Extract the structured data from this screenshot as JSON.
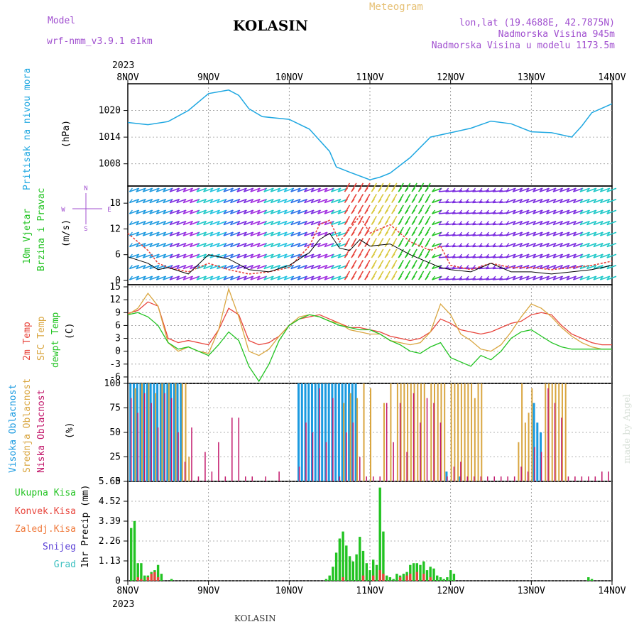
{
  "header": {
    "model_label": "Model",
    "model_name": "wrf-nmm_v3.9.1  e1km",
    "station": "KOLASIN",
    "product": "Meteogram",
    "lonlat": "lon,lat (19.4688E, 42.7875N)",
    "elevation": "Nadmorska Visina 945m",
    "model_elevation": "Nadmorska Visina u modelu 1173.5m",
    "year_top": "2023",
    "year_bottom": "2023",
    "footer_station": "KOLASIN",
    "watermark": "made by Angel"
  },
  "colors": {
    "pressure": "#1ea7e1",
    "temp2m": "#e8453c",
    "sfc_temp": "#d9a640",
    "dewpoint": "#22c322",
    "high_cloud": "#1a9ae0",
    "mid_cloud": "#d9a640",
    "low_cloud": "#c2186b",
    "total_precip": "#22c322",
    "conv_precip": "#e8453c",
    "frozen_precip": "#f07a3c",
    "snow": "#5a3fd6",
    "graupel": "#3cc0c0",
    "gust": "#e8453c",
    "speed": "#000000"
  },
  "chart_data": [
    {
      "type": "line",
      "panel": "pressure",
      "ylabel": [
        "Pritisak na nivou mora",
        "(hPa)"
      ],
      "ylim": [
        1003,
        1026
      ],
      "yticks": [
        "1008",
        "1014",
        "1020"
      ],
      "x_dates": [
        "8NOV",
        "9NOV",
        "10NOV",
        "11NOV",
        "12NOV",
        "13NOV",
        "14NOV"
      ],
      "x_hours": [
        0,
        6,
        12,
        18,
        24,
        30,
        33,
        36,
        40,
        48,
        54,
        60,
        62,
        66,
        72,
        75,
        78,
        84,
        90,
        96,
        102,
        108,
        114,
        120,
        126,
        132,
        135,
        138,
        144
      ],
      "values": [
        1017.3,
        1016.8,
        1017.5,
        1020.0,
        1023.8,
        1024.6,
        1023.4,
        1020.4,
        1018.6,
        1018.0,
        1015.8,
        1010.8,
        1007.3,
        1006.1,
        1004.4,
        1005.0,
        1005.9,
        1009.4,
        1014.0,
        1015.0,
        1016.0,
        1017.6,
        1017.0,
        1015.2,
        1015.0,
        1014.0,
        1016.5,
        1019.5,
        1021.5
      ]
    },
    {
      "type": "line",
      "panel": "wind",
      "ylabel": [
        "10m Vjetar",
        "Brzina i Pravac",
        "(m/s)"
      ],
      "compass": {
        "n": "N",
        "e": "E",
        "s": "S",
        "w": "W"
      },
      "ylim": [
        -1,
        22
      ],
      "yticks": [
        "0",
        "6",
        "12",
        "18"
      ],
      "x_hours": [
        0,
        6,
        9,
        12,
        18,
        24,
        30,
        36,
        42,
        48,
        54,
        57,
        60,
        63,
        66,
        69,
        72,
        78,
        84,
        90,
        93,
        96,
        102,
        108,
        114,
        120,
        126,
        132,
        138,
        144
      ],
      "series": [
        {
          "name": "gust",
          "values": [
            11.0,
            7.0,
            4.0,
            3.0,
            2.0,
            4.0,
            2.5,
            1.5,
            2.0,
            3.0,
            8.0,
            13.0,
            14.0,
            9.0,
            12.0,
            15.0,
            11.0,
            13.0,
            9.0,
            7.0,
            8.0,
            3.5,
            2.5,
            4.0,
            3.0,
            3.0,
            2.5,
            3.0,
            3.5,
            4.5
          ]
        },
        {
          "name": "speed",
          "values": [
            5.5,
            4.0,
            2.5,
            3.0,
            1.5,
            6.0,
            5.0,
            2.5,
            2.0,
            3.5,
            6.5,
            9.5,
            11.0,
            7.5,
            7.0,
            9.5,
            8.0,
            8.5,
            6.0,
            4.0,
            3.0,
            2.5,
            2.0,
            4.0,
            2.0,
            2.0,
            1.5,
            2.0,
            2.5,
            3.5
          ]
        }
      ]
    },
    {
      "type": "line",
      "panel": "temperature",
      "ylabel": [
        "2m Temp",
        "SFC Temp",
        "dewpt Temp",
        "(C)"
      ],
      "ylim": [
        -7.5,
        15.5
      ],
      "yticks": [
        "-6",
        "-3",
        "0",
        "3",
        "6",
        "9",
        "12",
        "15"
      ],
      "x_hours": [
        0,
        3,
        6,
        9,
        12,
        15,
        18,
        21,
        24,
        27,
        30,
        33,
        36,
        39,
        42,
        45,
        48,
        51,
        54,
        57,
        60,
        63,
        66,
        69,
        72,
        75,
        78,
        81,
        84,
        87,
        90,
        93,
        96,
        99,
        102,
        105,
        108,
        111,
        114,
        117,
        120,
        123,
        126,
        129,
        132,
        135,
        138,
        141,
        144
      ],
      "series": [
        {
          "name": "2m Temp",
          "values": [
            8.8,
            9.5,
            11.5,
            10.5,
            3.0,
            2.0,
            2.5,
            2.0,
            1.5,
            5.0,
            10.0,
            8.5,
            2.5,
            1.5,
            2.0,
            3.5,
            6.0,
            7.5,
            8.0,
            8.5,
            7.5,
            6.5,
            5.5,
            5.5,
            5.0,
            4.5,
            3.5,
            3.0,
            2.5,
            3.0,
            4.5,
            7.5,
            6.5,
            5.0,
            4.5,
            4.0,
            4.5,
            5.5,
            6.5,
            7.0,
            8.5,
            9.0,
            8.5,
            6.0,
            4.0,
            3.0,
            2.0,
            1.5,
            1.5
          ]
        },
        {
          "name": "SFC Temp",
          "values": [
            8.5,
            10.0,
            13.5,
            10.5,
            2.0,
            0.0,
            1.0,
            0.0,
            -0.5,
            5.0,
            14.5,
            8.0,
            0.0,
            -1.0,
            0.5,
            3.5,
            6.0,
            8.0,
            8.5,
            8.0,
            7.0,
            6.5,
            5.0,
            4.5,
            4.0,
            4.0,
            2.5,
            2.0,
            1.5,
            2.0,
            4.5,
            11.0,
            8.5,
            4.0,
            2.5,
            0.5,
            0.0,
            1.5,
            4.5,
            8.0,
            11.0,
            10.0,
            8.0,
            5.5,
            3.5,
            2.0,
            1.0,
            0.5,
            0.5
          ]
        },
        {
          "name": "dewpt Temp",
          "values": [
            8.5,
            9.0,
            8.0,
            6.0,
            2.0,
            0.5,
            1.0,
            0.0,
            -1.0,
            1.5,
            4.5,
            2.5,
            -3.5,
            -7.0,
            -3.0,
            2.5,
            6.0,
            7.5,
            8.5,
            8.0,
            7.0,
            6.0,
            5.5,
            5.0,
            5.0,
            4.0,
            2.5,
            1.5,
            0.0,
            -0.5,
            1.0,
            2.0,
            -1.5,
            -2.5,
            -3.5,
            -1.0,
            -2.0,
            0.0,
            3.0,
            4.5,
            5.0,
            3.5,
            2.0,
            1.0,
            0.5,
            0.5,
            0.5,
            0.5,
            0.5
          ]
        }
      ]
    },
    {
      "type": "bar",
      "panel": "clouds",
      "ylabel": [
        "Visoka Oblacnost",
        "Srednja Oblacnost",
        "Niska Oblacnost",
        "(%)"
      ],
      "ylim": [
        0,
        100
      ],
      "yticks": [
        "0",
        "25",
        "50",
        "75",
        "100"
      ],
      "series": [
        {
          "name": "Visoka Oblacnost",
          "hours": [
            1,
            2,
            3,
            4,
            5,
            6,
            7,
            8,
            9,
            10,
            11,
            12,
            13,
            14,
            15,
            16,
            51,
            52,
            53,
            54,
            55,
            56,
            57,
            58,
            59,
            60,
            61,
            62,
            63,
            64,
            65,
            66,
            67,
            68,
            95,
            99,
            121,
            122,
            123
          ],
          "values": [
            100,
            100,
            100,
            100,
            100,
            100,
            100,
            100,
            100,
            100,
            100,
            100,
            100,
            100,
            100,
            100,
            100,
            100,
            100,
            100,
            100,
            100,
            100,
            100,
            100,
            100,
            100,
            100,
            100,
            100,
            100,
            100,
            100,
            100,
            10,
            5,
            80,
            60,
            50
          ]
        },
        {
          "name": "Srednja Oblacnost",
          "hours": [
            2,
            4,
            6,
            8,
            10,
            12,
            14,
            16,
            17,
            18,
            64,
            66,
            68,
            70,
            72,
            76,
            78,
            80,
            81,
            82,
            83,
            84,
            85,
            86,
            87,
            88,
            90,
            91,
            92,
            93,
            94,
            96,
            97,
            98,
            99,
            100,
            101,
            102,
            103,
            104,
            105,
            116,
            117,
            118,
            119,
            120,
            124,
            125,
            126,
            127,
            128,
            129,
            130
          ],
          "values": [
            95,
            100,
            100,
            90,
            100,
            100,
            100,
            100,
            100,
            25,
            80,
            90,
            85,
            100,
            95,
            80,
            100,
            100,
            100,
            100,
            100,
            100,
            100,
            100,
            100,
            100,
            100,
            100,
            100,
            100,
            100,
            100,
            100,
            100,
            100,
            100,
            100,
            100,
            85,
            100,
            100,
            40,
            100,
            60,
            70,
            95,
            100,
            100,
            100,
            100,
            100,
            100,
            100
          ]
        },
        {
          "name": "Niska Oblacnost",
          "hours": [
            1,
            3,
            5,
            7,
            9,
            11,
            13,
            15,
            17,
            19,
            21,
            23,
            25,
            27,
            29,
            31,
            33,
            35,
            37,
            41,
            45,
            51,
            53,
            55,
            57,
            59,
            61,
            63,
            65,
            67,
            69,
            71,
            73,
            75,
            77,
            79,
            81,
            83,
            85,
            87,
            89,
            91,
            93,
            95,
            97,
            99,
            101,
            103,
            105,
            107,
            109,
            111,
            113,
            115,
            117,
            119,
            121,
            123,
            125,
            127,
            129,
            131,
            133,
            135,
            137,
            139,
            141,
            143
          ],
          "values": [
            85,
            70,
            90,
            80,
            55,
            90,
            85,
            50,
            20,
            55,
            5,
            30,
            10,
            40,
            5,
            65,
            65,
            5,
            5,
            5,
            10,
            15,
            60,
            50,
            95,
            40,
            85,
            5,
            50,
            60,
            25,
            5,
            5,
            5,
            80,
            40,
            80,
            30,
            90,
            60,
            85,
            80,
            60,
            5,
            15,
            20,
            5,
            5,
            5,
            5,
            5,
            5,
            5,
            5,
            15,
            10,
            35,
            30,
            95,
            80,
            65,
            5,
            5,
            5,
            5,
            5,
            10,
            10
          ]
        }
      ]
    },
    {
      "type": "bar",
      "panel": "precipitation",
      "ylabel": [
        "1hr Precip (mm)"
      ],
      "legend": [
        "Ukupna Kisa",
        "Konvek.Kisa",
        "Zaledj.Kisa",
        "Snijeg",
        "Grad"
      ],
      "ylim": [
        0,
        5.65
      ],
      "yticks": [
        "0",
        "1.13",
        "2.26",
        "3.39",
        "4.52",
        "5.65"
      ],
      "series": [
        {
          "name": "Ukupna Kisa",
          "hours": [
            1,
            2,
            3,
            4,
            5,
            6,
            7,
            8,
            9,
            10,
            13,
            59,
            60,
            61,
            62,
            63,
            64,
            65,
            66,
            67,
            68,
            69,
            70,
            71,
            72,
            73,
            74,
            75,
            76,
            77,
            78,
            79,
            80,
            81,
            82,
            83,
            84,
            85,
            86,
            87,
            88,
            89,
            90,
            91,
            92,
            93,
            94,
            95,
            96,
            97,
            137,
            138
          ],
          "values": [
            3.0,
            3.4,
            1.0,
            1.0,
            0.3,
            0.3,
            0.5,
            0.6,
            0.9,
            0.4,
            0.1,
            0.1,
            0.3,
            0.8,
            1.6,
            2.4,
            2.8,
            2.0,
            1.4,
            1.1,
            1.5,
            2.5,
            1.7,
            1.0,
            0.6,
            1.2,
            0.9,
            5.3,
            2.8,
            0.3,
            0.2,
            0.1,
            0.4,
            0.3,
            0.4,
            0.5,
            0.9,
            1.0,
            1.0,
            0.9,
            1.1,
            0.6,
            0.8,
            0.7,
            0.3,
            0.2,
            0.1,
            0.2,
            0.6,
            0.4,
            0.2,
            0.1
          ]
        },
        {
          "name": "Konvek.Kisa",
          "hours": [
            3,
            4,
            6,
            7,
            8,
            9,
            64,
            70,
            73,
            75,
            76,
            81,
            83,
            84,
            86,
            88,
            90
          ],
          "values": [
            0.2,
            0.1,
            0.2,
            0.4,
            0.5,
            0.2,
            0.2,
            0.3,
            0.3,
            0.6,
            0.4,
            0.2,
            0.3,
            0.4,
            0.5,
            0.4,
            0.2
          ]
        }
      ]
    }
  ]
}
